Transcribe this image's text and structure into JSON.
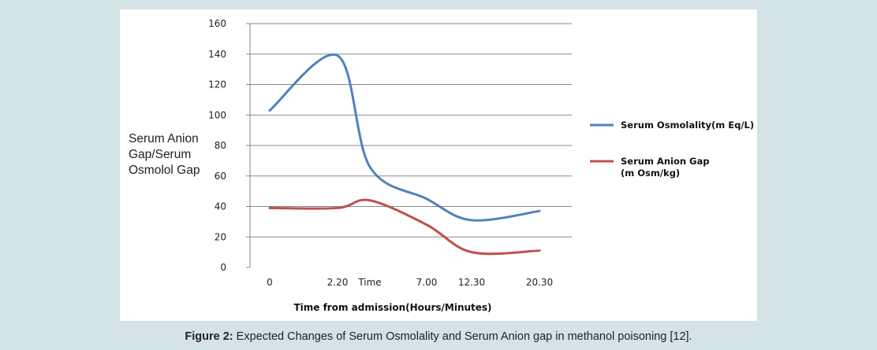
{
  "chart_data": {
    "type": "line",
    "x": [
      "0",
      "2.20",
      "Time",
      "7.00",
      "12.30",
      "20.30"
    ],
    "ylim": [
      0,
      160
    ],
    "yticks": [
      "0",
      "20",
      "40",
      "60",
      "80",
      "100",
      "120",
      "140",
      "160"
    ],
    "ylabel": [
      "Serum Anion",
      "Gap/Serum",
      "Osmolol Gap"
    ],
    "xlabel": "Time from admission(Hours/Minutes)",
    "grid": true,
    "legend_position": "right",
    "series": [
      {
        "name": "Serum Osmolality(m Eq/L)",
        "color": "#4f81bd",
        "values": [
          103,
          139,
          66,
          45,
          31,
          37
        ]
      },
      {
        "name": [
          "Serum Anion Gap",
          "(m Osm/kg)"
        ],
        "color": "#c0504d",
        "values": [
          39,
          39,
          44,
          28,
          10,
          11
        ]
      }
    ]
  },
  "caption": {
    "label": "Figure 2:",
    "text": " Expected Changes of Serum Osmolality and Serum Anion gap in methanol poisoning [12]."
  }
}
